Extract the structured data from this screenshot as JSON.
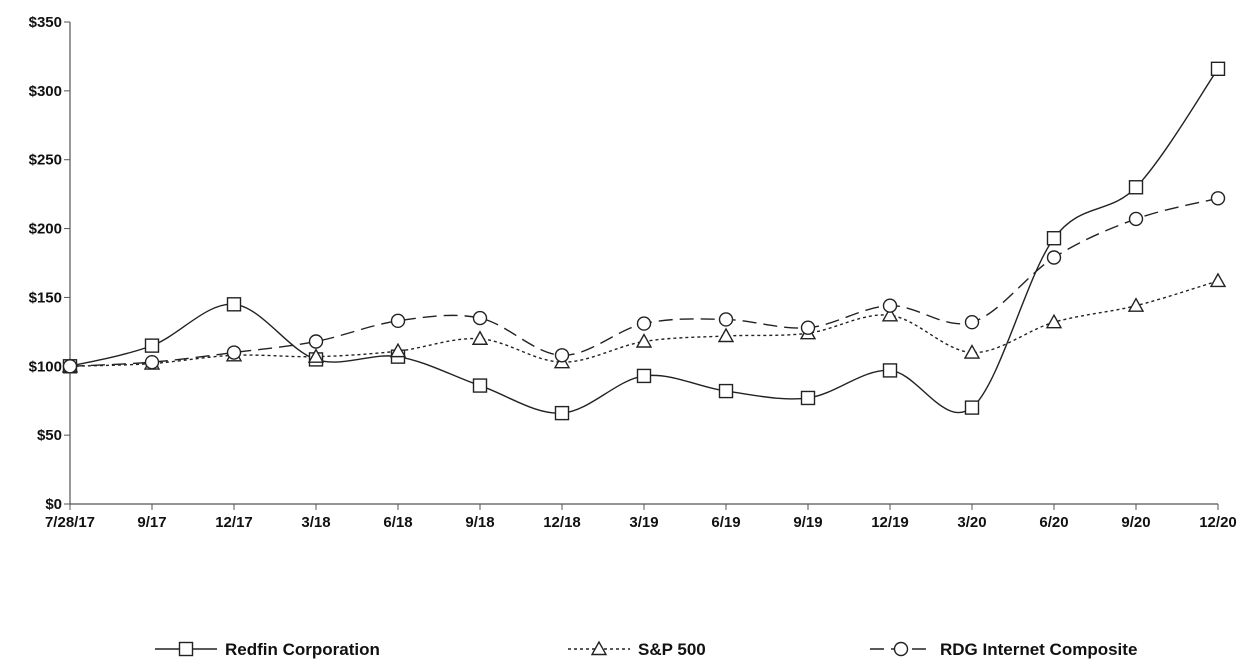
{
  "chart_data": {
    "type": "line",
    "title": "",
    "xlabel": "",
    "ylabel": "",
    "categories": [
      "7/28/17",
      "9/17",
      "12/17",
      "3/18",
      "6/18",
      "9/18",
      "12/18",
      "3/19",
      "6/19",
      "9/19",
      "12/19",
      "3/20",
      "6/20",
      "9/20",
      "12/20"
    ],
    "ylim": [
      0,
      350
    ],
    "yticks": [
      0,
      50,
      100,
      150,
      200,
      250,
      300,
      350
    ],
    "ytick_labels": [
      "$0",
      "$50",
      "$100",
      "$150",
      "$200",
      "$250",
      "$300",
      "$350"
    ],
    "grid": false,
    "legend_position": "bottom",
    "series": [
      {
        "name": "Redfin Corporation",
        "marker": "square",
        "line_style": "solid",
        "color": "#222222",
        "values": [
          100,
          115,
          145,
          105,
          107,
          86,
          66,
          93,
          82,
          77,
          97,
          70,
          193,
          230,
          316
        ]
      },
      {
        "name": "S&P 500",
        "marker": "triangle",
        "line_style": "dotted",
        "color": "#222222",
        "values": [
          100,
          102,
          108,
          107,
          111,
          120,
          103,
          118,
          122,
          124,
          137,
          110,
          132,
          144,
          162
        ]
      },
      {
        "name": "RDG Internet Composite",
        "marker": "circle",
        "line_style": "dashed",
        "color": "#222222",
        "values": [
          100,
          103,
          110,
          118,
          133,
          135,
          108,
          131,
          134,
          128,
          144,
          132,
          179,
          207,
          222
        ]
      }
    ]
  }
}
